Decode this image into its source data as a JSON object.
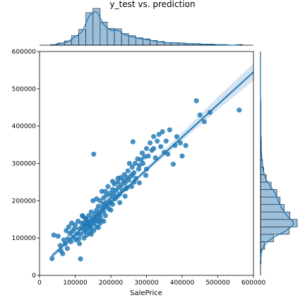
{
  "chart_data": {
    "type": "scatter",
    "title": "y_test vs. prediction",
    "xlabel": "SalePrice",
    "ylabel": "",
    "xlim": [
      0,
      600000
    ],
    "ylim": [
      0,
      600000
    ],
    "x_ticks": [
      "0",
      "100000",
      "200000",
      "300000",
      "400000",
      "500000",
      "600000"
    ],
    "y_ticks": [
      "0",
      "100000",
      "200000",
      "300000",
      "400000",
      "500000",
      "600000"
    ],
    "grid": false,
    "legend": "none",
    "colors": {
      "points": "#1f77b4",
      "line": "#1f77b4",
      "ci_band": "#c5d9ec",
      "hist_fill": "#9ebfd9",
      "hist_edge": "#1f2d3d"
    },
    "regression_line": {
      "x": [
        35000,
        600000
      ],
      "y": [
        52000,
        545000
      ]
    },
    "ci_band": {
      "x": [
        35000,
        100000,
        200000,
        300000,
        400000,
        500000,
        600000
      ],
      "upper": [
        60000,
        110000,
        198000,
        290000,
        383000,
        478000,
        568000
      ],
      "lower": [
        44000,
        99000,
        188000,
        276000,
        361000,
        444000,
        522000
      ]
    },
    "points": [
      [
        35000,
        45000
      ],
      [
        40000,
        108000
      ],
      [
        52000,
        105000
      ],
      [
        58000,
        80000
      ],
      [
        60000,
        66000
      ],
      [
        65000,
        58000
      ],
      [
        68000,
        95000
      ],
      [
        72000,
        85000
      ],
      [
        75000,
        120000
      ],
      [
        78000,
        72000
      ],
      [
        80000,
        98000
      ],
      [
        82000,
        130000
      ],
      [
        85000,
        112000
      ],
      [
        88000,
        90000
      ],
      [
        90000,
        140000
      ],
      [
        92000,
        118000
      ],
      [
        95000,
        103000
      ],
      [
        98000,
        125000
      ],
      [
        100000,
        135000
      ],
      [
        102000,
        95000
      ],
      [
        105000,
        112000
      ],
      [
        108000,
        145000
      ],
      [
        110000,
        98000
      ],
      [
        112000,
        125000
      ],
      [
        115000,
        44000
      ],
      [
        115000,
        110000
      ],
      [
        118000,
        140000
      ],
      [
        120000,
        128000
      ],
      [
        122000,
        158000
      ],
      [
        125000,
        100000
      ],
      [
        125000,
        117000
      ],
      [
        127000,
        135000
      ],
      [
        130000,
        150000
      ],
      [
        130000,
        122000
      ],
      [
        132000,
        108000
      ],
      [
        135000,
        142000
      ],
      [
        135000,
        128000
      ],
      [
        138000,
        160000
      ],
      [
        140000,
        115000
      ],
      [
        140000,
        145000
      ],
      [
        142000,
        132000
      ],
      [
        145000,
        170000
      ],
      [
        145000,
        125000
      ],
      [
        148000,
        155000
      ],
      [
        150000,
        138000
      ],
      [
        150000,
        148000
      ],
      [
        152000,
        120000
      ],
      [
        152000,
        325000
      ],
      [
        155000,
        165000
      ],
      [
        155000,
        142000
      ],
      [
        158000,
        150000
      ],
      [
        160000,
        130000
      ],
      [
        160000,
        175000
      ],
      [
        162000,
        158000
      ],
      [
        165000,
        185000
      ],
      [
        165000,
        145000
      ],
      [
        168000,
        168000
      ],
      [
        170000,
        160000
      ],
      [
        170000,
        200000
      ],
      [
        172000,
        150000
      ],
      [
        175000,
        178000
      ],
      [
        175000,
        225000
      ],
      [
        178000,
        190000
      ],
      [
        180000,
        170000
      ],
      [
        180000,
        208000
      ],
      [
        182000,
        182000
      ],
      [
        185000,
        195000
      ],
      [
        185000,
        160000
      ],
      [
        188000,
        215000
      ],
      [
        190000,
        188000
      ],
      [
        192000,
        238000
      ],
      [
        195000,
        200000
      ],
      [
        195000,
        178000
      ],
      [
        198000,
        220000
      ],
      [
        200000,
        195000
      ],
      [
        202000,
        210000
      ],
      [
        205000,
        230000
      ],
      [
        205000,
        190000
      ],
      [
        208000,
        218000
      ],
      [
        210000,
        245000
      ],
      [
        212000,
        205000
      ],
      [
        215000,
        228000
      ],
      [
        218000,
        212000
      ],
      [
        220000,
        250000
      ],
      [
        222000,
        236000
      ],
      [
        225000,
        218000
      ],
      [
        228000,
        262000
      ],
      [
        230000,
        242000
      ],
      [
        232000,
        228000
      ],
      [
        235000,
        255000
      ],
      [
        238000,
        270000
      ],
      [
        240000,
        248000
      ],
      [
        242000,
        232000
      ],
      [
        245000,
        262000
      ],
      [
        248000,
        280000
      ],
      [
        250000,
        255000
      ],
      [
        252000,
        300000
      ],
      [
        255000,
        265000
      ],
      [
        258000,
        238000
      ],
      [
        260000,
        290000
      ],
      [
        262000,
        358000
      ],
      [
        265000,
        275000
      ],
      [
        268000,
        300000
      ],
      [
        270000,
        260000
      ],
      [
        275000,
        312000
      ],
      [
        278000,
        285000
      ],
      [
        280000,
        248000
      ],
      [
        285000,
        310000
      ],
      [
        288000,
        328000
      ],
      [
        290000,
        300000
      ],
      [
        295000,
        318000
      ],
      [
        298000,
        268000
      ],
      [
        300000,
        340000
      ],
      [
        305000,
        320000
      ],
      [
        310000,
        355000
      ],
      [
        315000,
        335000
      ],
      [
        320000,
        372000
      ],
      [
        325000,
        315000
      ],
      [
        330000,
        360000
      ],
      [
        335000,
        378000
      ],
      [
        340000,
        345000
      ],
      [
        345000,
        385000
      ],
      [
        350000,
        330000
      ],
      [
        355000,
        360000
      ],
      [
        360000,
        325000
      ],
      [
        365000,
        390000
      ],
      [
        375000,
        298000
      ],
      [
        380000,
        348000
      ],
      [
        385000,
        372000
      ],
      [
        395000,
        355000
      ],
      [
        400000,
        320000
      ],
      [
        410000,
        348000
      ],
      [
        440000,
        468000
      ],
      [
        450000,
        430000
      ],
      [
        462000,
        412000
      ],
      [
        478000,
        437000
      ],
      [
        560000,
        443000
      ],
      [
        130000,
        152000
      ],
      [
        150000,
        200000
      ],
      [
        170000,
        140000
      ],
      [
        112000,
        85000
      ],
      [
        120000,
        160000
      ],
      [
        140000,
        135000
      ],
      [
        160000,
        205000
      ],
      [
        180000,
        145000
      ],
      [
        200000,
        175000
      ],
      [
        220000,
        260000
      ],
      [
        240000,
        212000
      ],
      [
        260000,
        270000
      ],
      [
        280000,
        295000
      ],
      [
        125000,
        140000
      ],
      [
        145000,
        110000
      ],
      [
        165000,
        128000
      ],
      [
        185000,
        225000
      ],
      [
        205000,
        252000
      ],
      [
        225000,
        195000
      ],
      [
        245000,
        235000
      ],
      [
        265000,
        250000
      ],
      [
        300000,
        285000
      ],
      [
        320000,
        340000
      ]
    ],
    "top_histogram": {
      "bin_edges": [
        30000,
        50000,
        70000,
        90000,
        110000,
        130000,
        150000,
        170000,
        190000,
        210000,
        230000,
        250000,
        270000,
        290000,
        310000,
        330000,
        350000,
        370000,
        390000,
        410000,
        430000,
        450000,
        470000,
        490000,
        510000,
        530000,
        550000,
        570000
      ],
      "counts": [
        1,
        4,
        8,
        18,
        30,
        62,
        70,
        44,
        32,
        31,
        22,
        18,
        14,
        12,
        9,
        7,
        5,
        5,
        4,
        3,
        3,
        2,
        2,
        1,
        1,
        0,
        1
      ]
    },
    "right_histogram": {
      "bin_edges": [
        30000,
        50000,
        70000,
        90000,
        110000,
        130000,
        150000,
        170000,
        190000,
        210000,
        230000,
        250000,
        270000,
        290000,
        310000,
        330000,
        350000,
        370000,
        390000,
        410000,
        430000,
        450000,
        470000,
        490000,
        510000,
        530000,
        550000,
        570000,
        590000
      ],
      "counts": [
        1,
        2,
        10,
        32,
        70,
        90,
        72,
        58,
        48,
        40,
        26,
        14,
        8,
        5,
        3,
        2,
        2,
        1,
        1,
        1,
        1,
        1,
        0,
        0,
        0,
        0,
        0,
        0
      ]
    }
  }
}
